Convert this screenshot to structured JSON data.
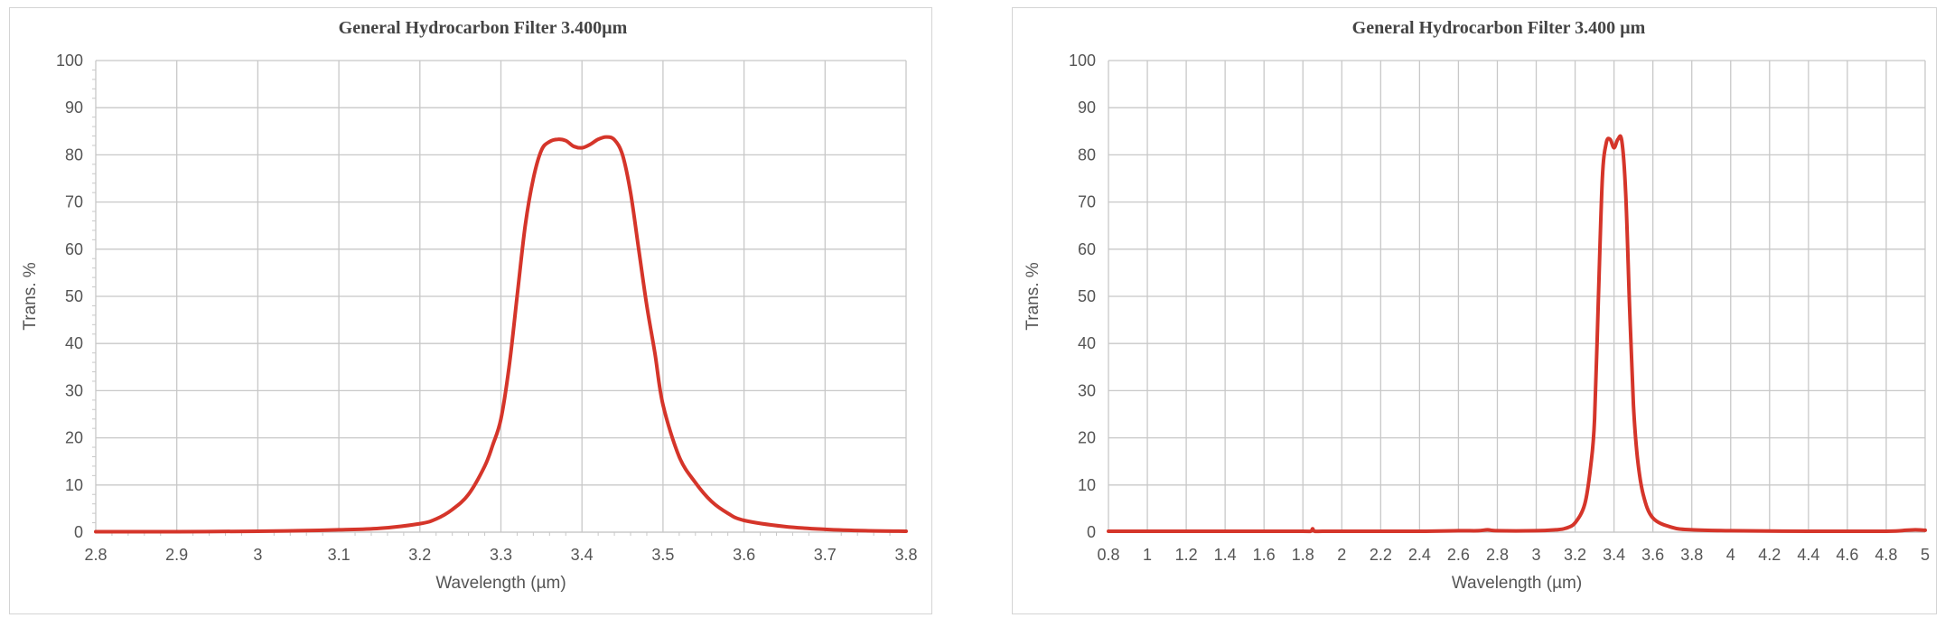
{
  "chart_data": [
    {
      "type": "line",
      "title": "General Hydrocarbon Filter 3.400µm",
      "xlabel": "Wavelength (µm)",
      "ylabel": "Trans. %",
      "xlim": [
        2.8,
        3.8
      ],
      "ylim": [
        0,
        100
      ],
      "xticks": [
        2.8,
        2.9,
        3,
        3.1,
        3.2,
        3.3,
        3.4,
        3.5,
        3.6,
        3.7,
        3.8
      ],
      "xtick_labels": [
        "2.8",
        "2.9",
        "3",
        "3.1",
        "3.2",
        "3.3",
        "3.4",
        "3.5",
        "3.6",
        "3.7",
        "3.8"
      ],
      "yticks": [
        0,
        10,
        20,
        30,
        40,
        50,
        60,
        70,
        80,
        90,
        100
      ],
      "ytick_labels": [
        "0",
        "10",
        "20",
        "30",
        "40",
        "50",
        "60",
        "70",
        "80",
        "90",
        "100"
      ],
      "grid": true,
      "color": "#d5352a",
      "series": [
        {
          "x": [
            2.8,
            2.9,
            3.0,
            3.05,
            3.1,
            3.15,
            3.2,
            3.22,
            3.24,
            3.26,
            3.28,
            3.29,
            3.3,
            3.31,
            3.32,
            3.33,
            3.34,
            3.35,
            3.36,
            3.37,
            3.38,
            3.39,
            3.4,
            3.41,
            3.42,
            3.43,
            3.44,
            3.45,
            3.46,
            3.47,
            3.48,
            3.49,
            3.5,
            3.52,
            3.54,
            3.56,
            3.58,
            3.6,
            3.65,
            3.7,
            3.75,
            3.8
          ],
          "y": [
            0.1,
            0.1,
            0.2,
            0.3,
            0.5,
            0.8,
            1.8,
            2.8,
            4.8,
            8.0,
            14.0,
            18.5,
            24.0,
            35.0,
            50.0,
            65.0,
            75.0,
            81.0,
            82.8,
            83.3,
            83.0,
            81.8,
            81.5,
            82.2,
            83.3,
            83.8,
            83.2,
            80.0,
            72.0,
            60.0,
            48.0,
            38.0,
            27.0,
            16.0,
            10.5,
            6.5,
            4.0,
            2.5,
            1.2,
            0.6,
            0.3,
            0.2
          ]
        }
      ]
    },
    {
      "type": "line",
      "title": "General Hydrocarbon Filter 3.400 µm",
      "xlabel": "Wavelength (µm)",
      "ylabel": "Trans. %",
      "xlim": [
        0.8,
        5.0
      ],
      "ylim": [
        0,
        100
      ],
      "xticks": [
        0.8,
        1,
        1.2,
        1.4,
        1.6,
        1.8,
        2,
        2.2,
        2.4,
        2.6,
        2.8,
        3,
        3.2,
        3.4,
        3.6,
        3.8,
        4,
        4.2,
        4.4,
        4.6,
        4.8,
        5
      ],
      "xtick_labels": [
        "0.8",
        "1",
        "1.2",
        "1.4",
        "1.6",
        "1.8",
        "2",
        "2.2",
        "2.4",
        "2.6",
        "2.8",
        "3",
        "3.2",
        "3.4",
        "3.6",
        "3.8",
        "4",
        "4.2",
        "4.4",
        "4.6",
        "4.8",
        "5"
      ],
      "yticks": [
        0,
        10,
        20,
        30,
        40,
        50,
        60,
        70,
        80,
        90,
        100
      ],
      "ytick_labels": [
        "0",
        "10",
        "20",
        "30",
        "40",
        "50",
        "60",
        "70",
        "80",
        "90",
        "100"
      ],
      "grid": true,
      "color": "#d5352a",
      "series": [
        {
          "x": [
            0.8,
            1.0,
            1.2,
            1.4,
            1.6,
            1.8,
            1.84,
            1.85,
            1.86,
            1.9,
            2.0,
            2.4,
            2.6,
            2.7,
            2.75,
            2.8,
            3.0,
            3.1,
            3.15,
            3.2,
            3.25,
            3.28,
            3.3,
            3.32,
            3.34,
            3.36,
            3.38,
            3.4,
            3.42,
            3.44,
            3.46,
            3.48,
            3.5,
            3.52,
            3.55,
            3.6,
            3.7,
            3.8,
            4.0,
            4.4,
            4.8,
            4.9,
            4.95,
            5.0
          ],
          "y": [
            0.2,
            0.2,
            0.2,
            0.2,
            0.2,
            0.2,
            0.2,
            0.7,
            0.2,
            0.2,
            0.2,
            0.2,
            0.3,
            0.3,
            0.5,
            0.3,
            0.3,
            0.5,
            0.8,
            2.0,
            6.0,
            14.0,
            24.0,
            50.0,
            75.0,
            82.5,
            83.3,
            81.5,
            83.3,
            83.0,
            72.0,
            48.0,
            27.0,
            16.0,
            8.0,
            3.0,
            1.0,
            0.5,
            0.3,
            0.2,
            0.2,
            0.4,
            0.5,
            0.4
          ]
        }
      ]
    }
  ]
}
